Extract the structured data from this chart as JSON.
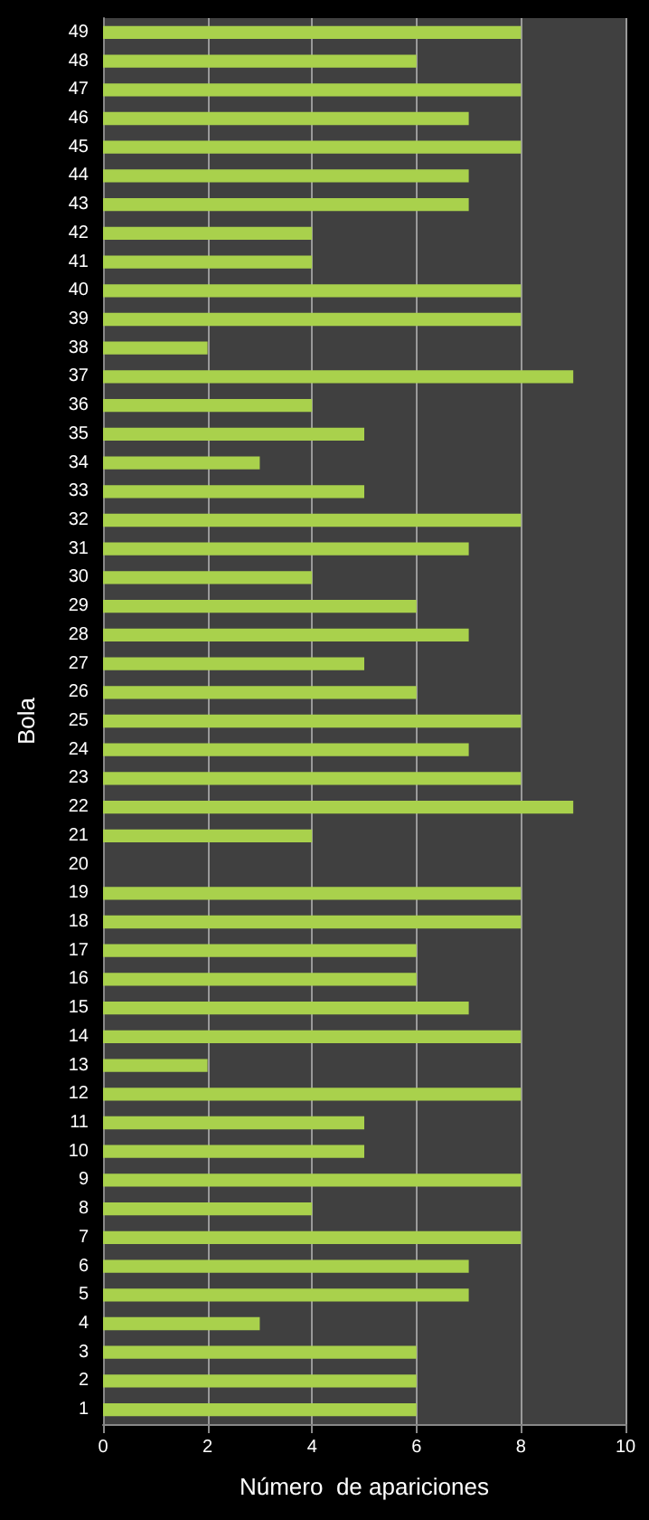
{
  "chart_data": {
    "type": "bar",
    "orientation": "horizontal",
    "xlabel": "Número  de apariciones",
    "ylabel": "Bola",
    "categories": [
      "49",
      "48",
      "47",
      "46",
      "45",
      "44",
      "43",
      "42",
      "41",
      "40",
      "39",
      "38",
      "37",
      "36",
      "35",
      "34",
      "33",
      "32",
      "31",
      "30",
      "29",
      "28",
      "27",
      "26",
      "25",
      "24",
      "23",
      "22",
      "21",
      "20",
      "19",
      "18",
      "17",
      "16",
      "15",
      "14",
      "13",
      "12",
      "11",
      "10",
      "9",
      "8",
      "7",
      "6",
      "5",
      "4",
      "3",
      "2",
      "1"
    ],
    "values": [
      8,
      6,
      8,
      7,
      8,
      7,
      7,
      4,
      4,
      8,
      8,
      2,
      9,
      4,
      5,
      3,
      5,
      8,
      7,
      4,
      6,
      7,
      5,
      6,
      8,
      7,
      8,
      9,
      4,
      0,
      8,
      8,
      6,
      6,
      7,
      8,
      2,
      8,
      5,
      5,
      8,
      4,
      8,
      7,
      7,
      3,
      6,
      6,
      6
    ],
    "color": "#a9d14c",
    "xlim": [
      0,
      10
    ],
    "xticks": [
      0,
      2,
      4,
      6,
      8,
      10
    ],
    "grid": "x"
  }
}
